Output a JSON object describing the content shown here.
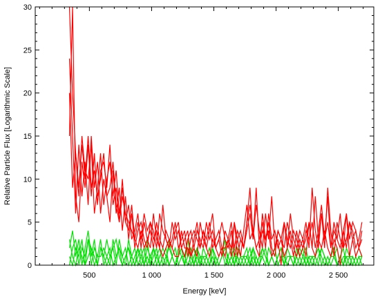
{
  "chart_data": {
    "type": "line",
    "title": "",
    "xlabel": "Energy [keV]",
    "ylabel": "Relative Particle Flux [Logarithmic Scale]",
    "xlim": [
      65,
      2785
    ],
    "ylim": [
      0,
      30
    ],
    "x_ticks": [
      {
        "value": 500,
        "label": "500"
      },
      {
        "value": 1000,
        "label": "1 000"
      },
      {
        "value": 1500,
        "label": "1 500"
      },
      {
        "value": 2000,
        "label": "2 000"
      },
      {
        "value": 2500,
        "label": "2 500"
      }
    ],
    "y_ticks": [
      {
        "value": 0,
        "label": "0"
      },
      {
        "value": 5,
        "label": "5"
      },
      {
        "value": 10,
        "label": "10"
      },
      {
        "value": 15,
        "label": "15"
      },
      {
        "value": 20,
        "label": "20"
      },
      {
        "value": 25,
        "label": "25"
      },
      {
        "value": 30,
        "label": "30"
      }
    ],
    "grid": false,
    "legend": "none",
    "x": [
      340,
      365,
      390,
      415,
      440,
      465,
      490,
      515,
      540,
      565,
      590,
      615,
      640,
      665,
      690,
      715,
      740,
      765,
      790,
      815,
      840,
      865,
      890,
      915,
      940,
      965,
      990,
      1015,
      1040,
      1065,
      1090,
      1115,
      1140,
      1165,
      1190,
      1215,
      1240,
      1265,
      1290,
      1315,
      1340,
      1365,
      1390,
      1415,
      1440,
      1465,
      1490,
      1515,
      1540,
      1565,
      1590,
      1615,
      1640,
      1665,
      1690,
      1715,
      1740,
      1765,
      1790,
      1815,
      1840,
      1865,
      1890,
      1915,
      1940,
      1965,
      1990,
      2015,
      2040,
      2065,
      2090,
      2115,
      2140,
      2165,
      2190,
      2215,
      2240,
      2265,
      2290,
      2315,
      2340,
      2365,
      2390,
      2415,
      2440,
      2465,
      2490,
      2515,
      2540,
      2565,
      2590,
      2615,
      2640,
      2665,
      2690
    ],
    "series": [
      {
        "color": "#ff0000",
        "values": [
          30,
          20,
          13,
          9,
          14,
          10,
          15,
          9,
          11,
          8,
          10,
          13,
          8,
          9,
          12,
          7,
          5,
          10,
          5,
          4,
          7,
          3,
          2,
          4,
          2,
          3,
          2,
          6,
          3,
          2,
          1,
          2,
          3,
          2,
          1,
          1,
          4,
          2,
          2,
          1,
          3,
          5,
          2,
          4,
          2,
          1,
          3,
          2,
          1,
          2,
          2,
          3,
          1,
          5,
          3,
          1,
          4,
          7,
          3,
          4,
          2,
          1,
          6,
          3,
          4,
          1,
          2,
          3,
          0,
          5,
          2,
          4,
          2,
          1,
          3,
          2,
          3,
          5,
          2,
          1,
          3,
          2,
          4,
          2,
          1,
          3,
          2,
          0,
          4,
          2,
          5,
          3,
          1,
          2,
          4
        ]
      },
      {
        "color": "#ff0000",
        "values": [
          24,
          15,
          6,
          14,
          8,
          12,
          7,
          15,
          9,
          12,
          6,
          10,
          8,
          5,
          11,
          6,
          9,
          4,
          8,
          3,
          6,
          2,
          4,
          5,
          3,
          2,
          5,
          3,
          4,
          2,
          7,
          3,
          2,
          5,
          3,
          4,
          2,
          1,
          3,
          4,
          2,
          1,
          5,
          3,
          2,
          4,
          6,
          2,
          3,
          1,
          4,
          3,
          2,
          5,
          1,
          3,
          2,
          4,
          6,
          3,
          9,
          2,
          4,
          3,
          5,
          2,
          1,
          4,
          3,
          1,
          2,
          6,
          3,
          2,
          4,
          3,
          1,
          5,
          2,
          8,
          3,
          6,
          2,
          9,
          4,
          1,
          5,
          3,
          2,
          6,
          1,
          3,
          4,
          2,
          3
        ]
      },
      {
        "color": "#ff0000",
        "values": [
          15,
          30,
          8,
          5,
          12,
          9,
          14,
          8,
          13,
          7,
          11,
          12,
          9,
          14,
          7,
          9,
          5,
          8,
          6,
          5,
          4,
          3,
          5,
          3,
          6,
          4,
          5,
          4,
          2,
          6,
          4,
          3,
          2,
          3,
          5,
          2,
          3,
          4,
          1,
          3,
          4,
          3,
          2,
          4,
          3,
          5,
          2,
          3,
          4,
          2,
          1,
          3,
          5,
          2,
          4,
          3,
          2,
          5,
          7,
          4,
          2,
          3,
          5,
          2,
          6,
          3,
          4,
          2,
          3,
          5,
          3,
          2,
          4,
          3,
          1,
          2,
          4,
          3,
          5,
          2,
          4,
          7,
          3,
          5,
          2,
          4,
          3,
          6,
          2,
          3,
          5,
          4,
          2,
          3,
          5
        ]
      },
      {
        "color": "#ff0000",
        "values": [
          20,
          9,
          13,
          8,
          15,
          11,
          10,
          14,
          6,
          9,
          13,
          7,
          10,
          12,
          8,
          11,
          6,
          9,
          5,
          7,
          3,
          4,
          6,
          2,
          5,
          3,
          4,
          2,
          5,
          3,
          2,
          4,
          3,
          2,
          4,
          5,
          2,
          3,
          4,
          1,
          2,
          4,
          3,
          2,
          5,
          3,
          4,
          2,
          3,
          5,
          3,
          2,
          4,
          1,
          3,
          4,
          2,
          5,
          9,
          3,
          7,
          4,
          2,
          6,
          3,
          8,
          2,
          4,
          3,
          2,
          5,
          3,
          1,
          4,
          2,
          3,
          5,
          2,
          9,
          4,
          2,
          6,
          3,
          8,
          2,
          5,
          3,
          2,
          4,
          6,
          3,
          5,
          4,
          2,
          1
        ]
      },
      {
        "color": "#00e000",
        "values": [
          2,
          4,
          1,
          3,
          0,
          2,
          4,
          1,
          3,
          0,
          2,
          1,
          3,
          1,
          2,
          0,
          3,
          1,
          2,
          0,
          1,
          2,
          0,
          1,
          2,
          0,
          1,
          2,
          0,
          1,
          2,
          1,
          0,
          1,
          2,
          0,
          1,
          1,
          2,
          0,
          1,
          2,
          1,
          0,
          1,
          2,
          0,
          1,
          0,
          1,
          2,
          1,
          0,
          1,
          1,
          0,
          1,
          2,
          0,
          1,
          0,
          1,
          2,
          1,
          0,
          1,
          2,
          0,
          1,
          1,
          0,
          1,
          0,
          1,
          2,
          1,
          0,
          1,
          0,
          1,
          2,
          1,
          0,
          1,
          0,
          1,
          2,
          0,
          1,
          1,
          0,
          1,
          0,
          1,
          1
        ]
      },
      {
        "color": "#00e000",
        "values": [
          0,
          2,
          3,
          0,
          2,
          1,
          3,
          0,
          2,
          1,
          1,
          2,
          1,
          0,
          3,
          1,
          2,
          0,
          1,
          2,
          0,
          1,
          2,
          1,
          0,
          2,
          1,
          0,
          1,
          2,
          0,
          1,
          2,
          1,
          0,
          1,
          2,
          1,
          0,
          1,
          2,
          0,
          1,
          1,
          0,
          1,
          2,
          0,
          1,
          2,
          1,
          0,
          1,
          2,
          0,
          1,
          1,
          0,
          1,
          2,
          0,
          1,
          1,
          0,
          2,
          1,
          0,
          1,
          2,
          1,
          0,
          1,
          1,
          0,
          1,
          2,
          0,
          1,
          1,
          0,
          1,
          2,
          1,
          0,
          1,
          1,
          0,
          1,
          2,
          0,
          1,
          1,
          0,
          1,
          0
        ]
      },
      {
        "color": "#00e000",
        "values": [
          1,
          0,
          2,
          1,
          3,
          0,
          1,
          2,
          1,
          0,
          2,
          1,
          0,
          1,
          2,
          3,
          1,
          0,
          1,
          2,
          1,
          0,
          1,
          2,
          0,
          1,
          0,
          2,
          1,
          0,
          1,
          2,
          0,
          1,
          0,
          1,
          2,
          0,
          1,
          2,
          0,
          1,
          0,
          2,
          1,
          0,
          1,
          0,
          1,
          2,
          0,
          1,
          2,
          0,
          1,
          0,
          1,
          1,
          2,
          0,
          1,
          0,
          2,
          1,
          0,
          1,
          0,
          1,
          2,
          0,
          1,
          1,
          0,
          2,
          1,
          0,
          1,
          0,
          1,
          1,
          2,
          0,
          1,
          0,
          1,
          2,
          0,
          1,
          0,
          1,
          1,
          0,
          1,
          2,
          1
        ]
      },
      {
        "color": "#00e000",
        "values": [
          3,
          1,
          0,
          2,
          1,
          0,
          3,
          2,
          0,
          1,
          3,
          0,
          1,
          2,
          0,
          1,
          2,
          1,
          0,
          3,
          1,
          0,
          2,
          0,
          1,
          3,
          0,
          1,
          2,
          0,
          1,
          0,
          3,
          1,
          0,
          2,
          1,
          0,
          3,
          1,
          0,
          2,
          0,
          1,
          1,
          0,
          2,
          1,
          0,
          1,
          3,
          0,
          1,
          0,
          2,
          1,
          0,
          1,
          0,
          2,
          1,
          0,
          1,
          2,
          0,
          1,
          2,
          0,
          1,
          0,
          2,
          1,
          0,
          1,
          0,
          1,
          2,
          0,
          1,
          1,
          0,
          2,
          1,
          0,
          1,
          2,
          0,
          1,
          0,
          2,
          1,
          0,
          1,
          0,
          1
        ]
      }
    ]
  }
}
